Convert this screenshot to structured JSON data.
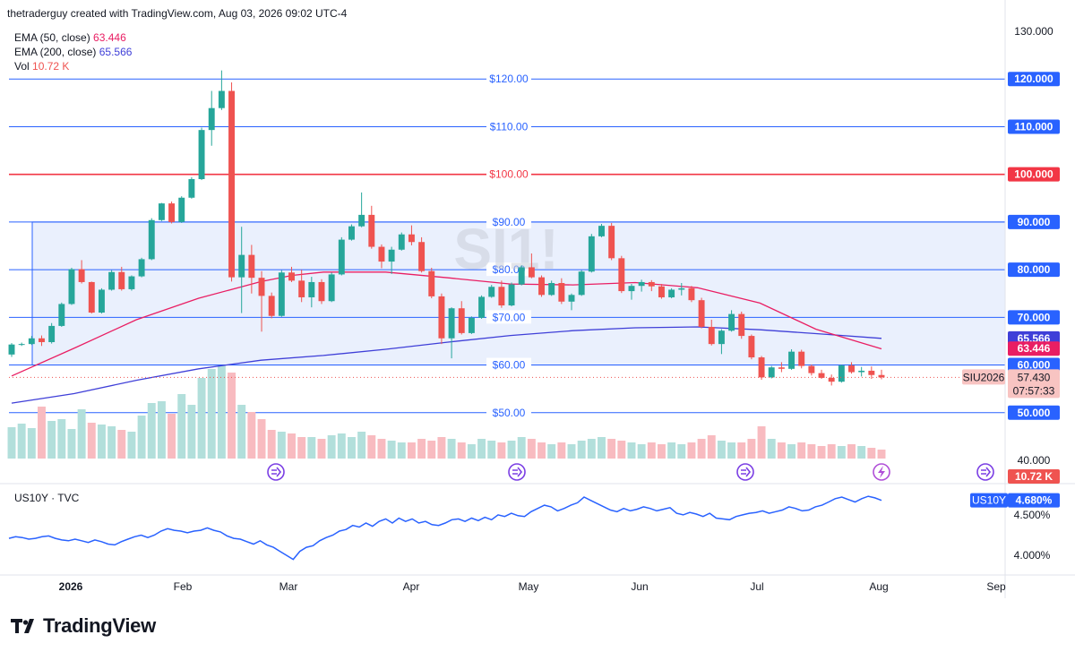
{
  "header": {
    "text": "thetraderguy created with TradingView.com, Aug 03, 2026 09:02 UTC-4"
  },
  "legend": {
    "ema50": {
      "label": "EMA (50, close)",
      "value": "63.446",
      "color": "#e91e63"
    },
    "ema200": {
      "label": "EMA (200, close)",
      "value": "65.566",
      "color": "#3f3fd8"
    },
    "vol": {
      "label": "Vol",
      "value": "10.72 K"
    }
  },
  "watermark": "SI1!",
  "sub_legend": "US10Y · TVC",
  "footer": {
    "brand": "TradingView"
  },
  "colors": {
    "up": "#26a69a",
    "down": "#ef5350",
    "volume_up": "#b2dfdb",
    "volume_down": "#f8bbc0",
    "level": "#2962ff",
    "level_red": "#f23645",
    "box_fill": "#e3ebfc",
    "us10y": "#2962ff"
  },
  "chart_data": [
    {
      "type": "candlestick",
      "instrument": "SIU2026",
      "last_price": "57.430",
      "countdown": "07:57:33",
      "x_ticks": [
        "2026",
        "Feb",
        "Mar",
        "Apr",
        "May",
        "Jun",
        "Jul",
        "Aug",
        "Sep"
      ],
      "y_ticks": [
        "130.000",
        "120.000",
        "110.000",
        "100.000",
        "90.000",
        "80.000",
        "70.000",
        "60.000",
        "50.000",
        "40.000"
      ],
      "ylim": [
        40,
        130
      ],
      "levels": [
        {
          "value": 120,
          "label": "$120.00",
          "color": "#2962ff"
        },
        {
          "value": 110,
          "label": "$110.00",
          "color": "#2962ff"
        },
        {
          "value": 100,
          "label": "$100.00",
          "color": "#f23645"
        },
        {
          "value": 90,
          "label": "$90.00",
          "color": "#2962ff"
        },
        {
          "value": 80,
          "label": "$80.00",
          "color": "#2962ff"
        },
        {
          "value": 70,
          "label": "$70.00",
          "color": "#2962ff"
        },
        {
          "value": 60,
          "label": "$60.00",
          "color": "#2962ff"
        },
        {
          "value": 50,
          "label": "$50.00",
          "color": "#2962ff"
        }
      ],
      "range_box": {
        "from": "2026-01-01",
        "low": 60,
        "high": 90
      },
      "badges": [
        {
          "text": "65.566",
          "value": 65.566,
          "color": "#3f3fd8"
        },
        {
          "text": "63.446",
          "value": 63.446,
          "color": "#e91e63"
        }
      ],
      "volume_badge": "10.72 K",
      "ema50_points": [
        [
          0,
          57.7
        ],
        [
          20,
          63.5
        ],
        [
          40,
          69.5
        ],
        [
          60,
          74.0
        ],
        [
          80,
          77.5
        ],
        [
          90,
          78.8
        ],
        [
          100,
          79.5
        ],
        [
          120,
          79.5
        ],
        [
          140,
          78.3
        ],
        [
          160,
          77.0
        ],
        [
          180,
          76.8
        ],
        [
          200,
          77.3
        ],
        [
          220,
          76.2
        ],
        [
          240,
          73.0
        ],
        [
          258,
          67.5
        ],
        [
          279,
          63.4
        ]
      ],
      "ema200_points": [
        [
          0,
          52.0
        ],
        [
          20,
          54.0
        ],
        [
          40,
          56.8
        ],
        [
          60,
          59.2
        ],
        [
          80,
          61.0
        ],
        [
          100,
          62.0
        ],
        [
          120,
          63.3
        ],
        [
          140,
          64.8
        ],
        [
          160,
          66.2
        ],
        [
          180,
          67.2
        ],
        [
          200,
          67.8
        ],
        [
          220,
          68.0
        ],
        [
          240,
          67.4
        ],
        [
          260,
          66.5
        ],
        [
          279,
          65.6
        ]
      ],
      "ohlc": [
        [
          62.2,
          64.6,
          61.7,
          64.3
        ],
        [
          64.3,
          64.7,
          64.0,
          64.4
        ],
        [
          64.4,
          66.1,
          64.2,
          65.6
        ],
        [
          65.6,
          66.2,
          64.0,
          64.8
        ],
        [
          64.8,
          68.8,
          64.5,
          68.2
        ],
        [
          68.2,
          73.1,
          68.0,
          72.8
        ],
        [
          72.8,
          80.4,
          72.6,
          80.1
        ],
        [
          80.1,
          82.0,
          77.1,
          77.4
        ],
        [
          77.4,
          77.5,
          70.8,
          71.0
        ],
        [
          71.0,
          76.1,
          70.8,
          75.8
        ],
        [
          75.8,
          79.9,
          75.6,
          79.5
        ],
        [
          79.5,
          80.6,
          75.6,
          75.9
        ],
        [
          75.9,
          78.8,
          75.6,
          78.6
        ],
        [
          78.6,
          82.5,
          78.4,
          82.2
        ],
        [
          82.2,
          90.8,
          82.0,
          90.4
        ],
        [
          90.4,
          94.0,
          90.2,
          93.9
        ],
        [
          93.9,
          94.3,
          89.7,
          90.0
        ],
        [
          90.0,
          95.4,
          89.8,
          95.1
        ],
        [
          95.1,
          99.4,
          94.9,
          99.0
        ],
        [
          99.0,
          109.8,
          98.8,
          109.3
        ],
        [
          109.3,
          117.5,
          106.0,
          113.9
        ],
        [
          113.9,
          121.8,
          113.5,
          117.5
        ],
        [
          117.5,
          119.3,
          77.5,
          78.4
        ],
        [
          78.4,
          89.0,
          70.9,
          83.1
        ],
        [
          83.1,
          85.2,
          75.0,
          78.3
        ],
        [
          78.3,
          79.7,
          67.0,
          74.5
        ],
        [
          74.5,
          75.2,
          69.8,
          70.3
        ],
        [
          70.3,
          79.9,
          70.1,
          79.4
        ],
        [
          79.4,
          80.6,
          77.4,
          77.7
        ],
        [
          77.7,
          80.0,
          73.2,
          74.2
        ],
        [
          74.2,
          78.5,
          72.1,
          77.4
        ],
        [
          77.4,
          78.0,
          72.8,
          73.4
        ],
        [
          73.4,
          79.4,
          73.2,
          79.0
        ],
        [
          79.0,
          86.8,
          78.8,
          86.3
        ],
        [
          86.3,
          89.5,
          86.1,
          89.1
        ],
        [
          89.1,
          96.2,
          88.9,
          91.5
        ],
        [
          91.5,
          93.4,
          84.4,
          84.8
        ],
        [
          84.8,
          85.3,
          80.3,
          81.7
        ],
        [
          81.7,
          84.8,
          79.1,
          84.2
        ],
        [
          84.2,
          87.8,
          84.0,
          87.4
        ],
        [
          87.4,
          89.3,
          85.1,
          85.8
        ],
        [
          85.8,
          86.8,
          79.4,
          79.7
        ],
        [
          79.7,
          80.4,
          74.0,
          74.4
        ],
        [
          74.4,
          75.0,
          64.4,
          65.6
        ],
        [
          65.6,
          72.1,
          61.4,
          71.9
        ],
        [
          71.9,
          73.4,
          66.4,
          66.7
        ],
        [
          66.7,
          70.2,
          66.5,
          69.9
        ],
        [
          69.9,
          74.6,
          69.7,
          74.3
        ],
        [
          74.3,
          76.8,
          74.1,
          76.4
        ],
        [
          76.4,
          77.7,
          72.0,
          72.5
        ],
        [
          72.5,
          77.3,
          72.3,
          76.9
        ],
        [
          76.9,
          80.9,
          76.7,
          80.5
        ],
        [
          80.5,
          83.4,
          78.2,
          78.4
        ],
        [
          78.4,
          78.8,
          74.3,
          74.7
        ],
        [
          74.7,
          77.7,
          74.5,
          77.2
        ],
        [
          77.2,
          78.2,
          72.8,
          73.3
        ],
        [
          73.3,
          75.0,
          71.5,
          74.7
        ],
        [
          74.7,
          79.9,
          74.5,
          79.6
        ],
        [
          79.6,
          87.5,
          79.4,
          87.0
        ],
        [
          87.0,
          89.6,
          86.8,
          89.2
        ],
        [
          89.2,
          89.8,
          82.0,
          82.4
        ],
        [
          82.4,
          82.9,
          75.1,
          75.5
        ],
        [
          75.5,
          77.0,
          73.7,
          76.6
        ],
        [
          76.6,
          77.9,
          75.4,
          77.4
        ],
        [
          77.4,
          77.8,
          75.5,
          76.5
        ],
        [
          76.5,
          77.0,
          73.9,
          74.2
        ],
        [
          74.2,
          76.1,
          74.0,
          75.8
        ],
        [
          75.8,
          77.2,
          74.6,
          76.1
        ],
        [
          76.1,
          76.6,
          73.2,
          73.6
        ],
        [
          73.6,
          74.1,
          67.7,
          68.0
        ],
        [
          68.0,
          69.5,
          64.1,
          64.4
        ],
        [
          64.4,
          67.5,
          62.3,
          67.2
        ],
        [
          67.2,
          71.5,
          67.0,
          70.7
        ],
        [
          70.7,
          71.2,
          65.5,
          66.1
        ],
        [
          66.1,
          66.4,
          61.2,
          61.6
        ],
        [
          61.6,
          61.9,
          56.9,
          57.4
        ],
        [
          57.4,
          59.8,
          57.2,
          59.5
        ],
        [
          59.5,
          60.6,
          58.5,
          59.2
        ],
        [
          59.2,
          63.3,
          59.0,
          62.8
        ],
        [
          62.8,
          63.2,
          59.3,
          59.8
        ],
        [
          59.8,
          60.1,
          57.8,
          58.3
        ],
        [
          58.3,
          59.0,
          57.1,
          57.3
        ],
        [
          57.3,
          58.0,
          55.7,
          56.5
        ],
        [
          56.5,
          60.1,
          56.3,
          59.9
        ],
        [
          59.9,
          60.6,
          58.2,
          58.5
        ],
        [
          58.5,
          59.6,
          57.6,
          58.8
        ],
        [
          58.8,
          59.7,
          57.1,
          57.9
        ],
        [
          57.9,
          59.0,
          57.0,
          57.4
        ]
      ],
      "volume": [
        35,
        39,
        34,
        58,
        42,
        44,
        33,
        55,
        40,
        38,
        36,
        32,
        30,
        48,
        62,
        64,
        50,
        72,
        60,
        90,
        100,
        104,
        96,
        60,
        52,
        44,
        32,
        30,
        28,
        24,
        24,
        22,
        26,
        28,
        24,
        30,
        26,
        22,
        20,
        18,
        18,
        22,
        20,
        24,
        22,
        18,
        16,
        22,
        20,
        18,
        20,
        24,
        22,
        18,
        16,
        18,
        16,
        20,
        22,
        24,
        22,
        20,
        18,
        16,
        18,
        16,
        18,
        16,
        18,
        22,
        26,
        20,
        18,
        18,
        22,
        36,
        22,
        18,
        16,
        18,
        16,
        14,
        16,
        14,
        16,
        14,
        12,
        10
      ],
      "volume_up": [
        true,
        true,
        true,
        false,
        true,
        true,
        true,
        true,
        false,
        true,
        true,
        false,
        true,
        true,
        true,
        true,
        false,
        true,
        true,
        true,
        true,
        true,
        false,
        true,
        false,
        false,
        false,
        true,
        false,
        false,
        true,
        false,
        true,
        true,
        true,
        true,
        false,
        false,
        true,
        true,
        false,
        false,
        false,
        false,
        true,
        false,
        true,
        true,
        true,
        false,
        true,
        true,
        false,
        false,
        true,
        false,
        true,
        true,
        true,
        true,
        false,
        false,
        true,
        true,
        false,
        false,
        true,
        true,
        false,
        false,
        false,
        true,
        true,
        false,
        false,
        false,
        true,
        false,
        true,
        false,
        false,
        false,
        false,
        true,
        false,
        true,
        false,
        false
      ]
    },
    {
      "type": "line",
      "instrument": "US10Y",
      "last_value": "4.680%",
      "y_ticks": [
        "4.500%",
        "4.000%"
      ],
      "ylim": [
        3.78,
        4.82
      ],
      "x_ticks": [
        "2026",
        "Feb",
        "Mar",
        "Apr",
        "May",
        "Jun",
        "Jul",
        "Aug",
        "Sep"
      ],
      "values": [
        4.21,
        4.23,
        4.22,
        4.2,
        4.21,
        4.23,
        4.24,
        4.21,
        4.19,
        4.18,
        4.2,
        4.18,
        4.16,
        4.19,
        4.17,
        4.14,
        4.13,
        4.17,
        4.2,
        4.23,
        4.25,
        4.22,
        4.25,
        4.3,
        4.33,
        4.31,
        4.3,
        4.28,
        4.3,
        4.31,
        4.34,
        4.31,
        4.29,
        4.24,
        4.21,
        4.2,
        4.17,
        4.14,
        4.18,
        4.13,
        4.1,
        4.05,
        4.0,
        3.95,
        4.05,
        4.1,
        4.12,
        4.18,
        4.22,
        4.25,
        4.3,
        4.32,
        4.37,
        4.35,
        4.4,
        4.36,
        4.42,
        4.45,
        4.4,
        4.46,
        4.42,
        4.45,
        4.4,
        4.42,
        4.38,
        4.37,
        4.4,
        4.44,
        4.45,
        4.42,
        4.46,
        4.43,
        4.47,
        4.44,
        4.5,
        4.48,
        4.52,
        4.49,
        4.48,
        4.54,
        4.58,
        4.62,
        4.6,
        4.55,
        4.58,
        4.62,
        4.65,
        4.72,
        4.68,
        4.64,
        4.6,
        4.56,
        4.54,
        4.58,
        4.55,
        4.57,
        4.6,
        4.58,
        4.55,
        4.57,
        4.59,
        4.52,
        4.5,
        4.53,
        4.51,
        4.48,
        4.52,
        4.46,
        4.45,
        4.44,
        4.48,
        4.5,
        4.52,
        4.53,
        4.55,
        4.52,
        4.54,
        4.56,
        4.6,
        4.58,
        4.55,
        4.56,
        4.6,
        4.62,
        4.66,
        4.7,
        4.72,
        4.69,
        4.66,
        4.7,
        4.73,
        4.71,
        4.68
      ]
    }
  ]
}
